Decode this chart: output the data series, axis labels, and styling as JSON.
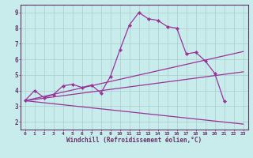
{
  "xlabel": "Windchill (Refroidissement éolien,°C)",
  "background_color": "#c8ecec",
  "line_color": "#993399",
  "grid_color": "#aacccc",
  "axis_color": "#663366",
  "xlim": [
    -0.5,
    23.5
  ],
  "ylim": [
    1.5,
    9.5
  ],
  "xticks": [
    0,
    1,
    2,
    3,
    4,
    5,
    6,
    7,
    8,
    9,
    10,
    11,
    12,
    13,
    14,
    15,
    16,
    17,
    18,
    19,
    20,
    21,
    22,
    23
  ],
  "yticks": [
    2,
    3,
    4,
    5,
    6,
    7,
    8,
    9
  ],
  "series_main": {
    "x": [
      0,
      1,
      2,
      3,
      4,
      5,
      6,
      7,
      8,
      9,
      10,
      11,
      12,
      13,
      14,
      15,
      16,
      17,
      18,
      19,
      20,
      21,
      22,
      23
    ],
    "y": [
      3.35,
      4.0,
      3.55,
      3.75,
      4.3,
      4.4,
      4.2,
      4.35,
      3.85,
      4.9,
      6.6,
      8.2,
      9.0,
      8.6,
      8.5,
      8.1,
      8.0,
      6.35,
      6.45,
      5.9,
      5.1,
      3.3,
      null,
      null
    ]
  },
  "line_upper": {
    "x": [
      0,
      23
    ],
    "y": [
      3.35,
      6.5
    ]
  },
  "line_mid": {
    "x": [
      0,
      23
    ],
    "y": [
      3.35,
      5.2
    ]
  },
  "line_lower": {
    "x": [
      0,
      23
    ],
    "y": [
      3.35,
      1.85
    ]
  }
}
